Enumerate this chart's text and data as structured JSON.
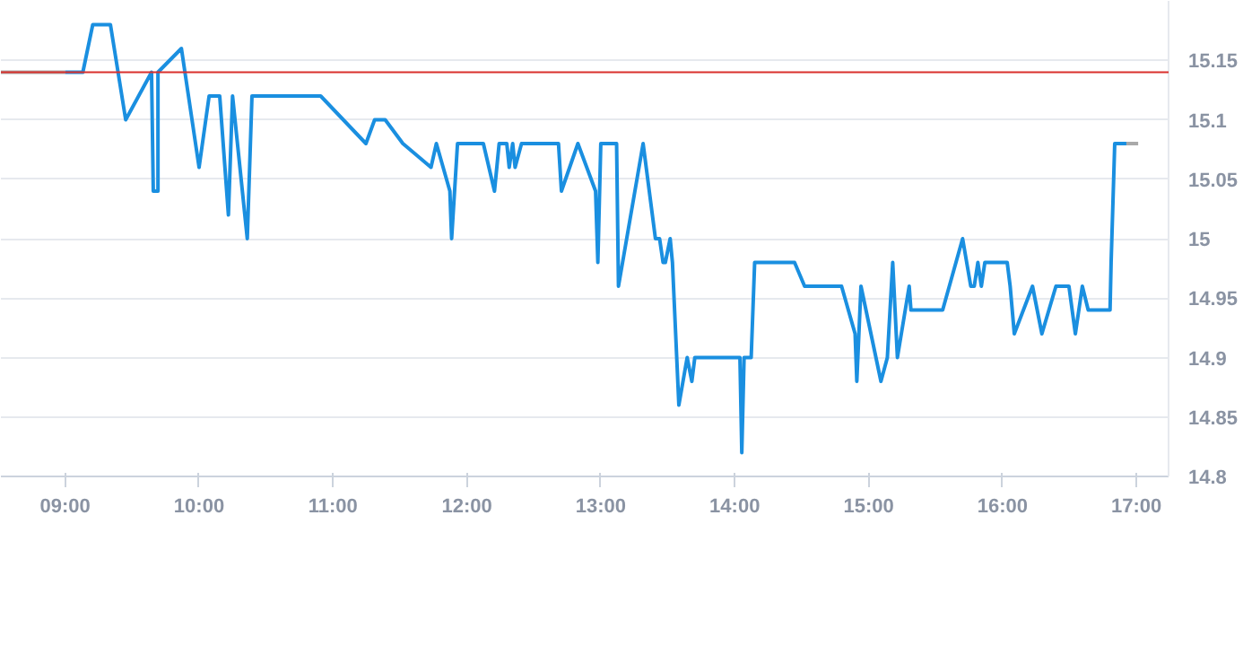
{
  "chart_data": {
    "type": "line",
    "xlim": [
      8.52,
      17.24
    ],
    "xticks": [
      {
        "value": 9,
        "label": "09:00"
      },
      {
        "value": 10,
        "label": "10:00"
      },
      {
        "value": 11,
        "label": "11:00"
      },
      {
        "value": 12,
        "label": "12:00"
      },
      {
        "value": 13,
        "label": "13:00"
      },
      {
        "value": 14,
        "label": "14:00"
      },
      {
        "value": 15,
        "label": "15:00"
      },
      {
        "value": 16,
        "label": "16:00"
      },
      {
        "value": 17,
        "label": "17:00"
      }
    ],
    "ylim": [
      14.8,
      15.2
    ],
    "yticks": [
      14.8,
      14.85,
      14.9,
      14.95,
      15,
      15.05,
      15.1,
      15.15
    ],
    "grid": "y",
    "series": [
      {
        "color": "#a9a9a9",
        "x": [
          8.52,
          9.0
        ],
        "values": [
          15.14,
          15.14
        ]
      },
      {
        "color": "#1a8fe0",
        "x": [
          9.0,
          9.132,
          9.206,
          9.338,
          9.452,
          9.645,
          9.658,
          9.693,
          9.693,
          9.868,
          10.0,
          10.075,
          10.154,
          10.219,
          10.25,
          10.36,
          10.395,
          10.908,
          11.246,
          11.311,
          11.39,
          11.522,
          11.732,
          11.772,
          11.873,
          11.886,
          11.93,
          12.123,
          12.206,
          12.241,
          12.298,
          12.316,
          12.342,
          12.36,
          12.408,
          12.684,
          12.706,
          12.829,
          12.961,
          12.978,
          13.0,
          13.118,
          13.132,
          13.316,
          13.408,
          13.439,
          13.465,
          13.482,
          13.518,
          13.535,
          13.583,
          13.645,
          13.68,
          13.702,
          14.039,
          14.053,
          14.07,
          14.123,
          14.149,
          14.447,
          14.522,
          14.798,
          14.899,
          14.912,
          14.943,
          15.092,
          15.14,
          15.18,
          15.215,
          15.303,
          15.316,
          15.553,
          15.702,
          15.763,
          15.789,
          15.816,
          15.842,
          15.868,
          16.035,
          16.057,
          16.088,
          16.224,
          16.294,
          16.399,
          16.496,
          16.544,
          16.596,
          16.64,
          16.803,
          16.811,
          16.838,
          16.925
        ],
        "values": [
          15.14,
          15.14,
          15.18,
          15.18,
          15.1,
          15.14,
          15.04,
          15.04,
          15.14,
          15.16,
          15.06,
          15.12,
          15.12,
          15.02,
          15.12,
          15.0,
          15.12,
          15.12,
          15.08,
          15.1,
          15.1,
          15.08,
          15.06,
          15.08,
          15.04,
          15.0,
          15.08,
          15.08,
          15.04,
          15.08,
          15.08,
          15.06,
          15.08,
          15.06,
          15.08,
          15.08,
          15.04,
          15.08,
          15.04,
          14.98,
          15.08,
          15.08,
          14.96,
          15.08,
          15.0,
          15.0,
          14.98,
          14.98,
          15.0,
          14.98,
          14.86,
          14.9,
          14.88,
          14.9,
          14.9,
          14.82,
          14.9,
          14.9,
          14.98,
          14.98,
          14.96,
          14.96,
          14.92,
          14.88,
          14.96,
          14.88,
          14.9,
          14.98,
          14.9,
          14.96,
          14.94,
          14.94,
          15.0,
          14.96,
          14.96,
          14.98,
          14.96,
          14.98,
          14.98,
          14.96,
          14.92,
          14.96,
          14.92,
          14.96,
          14.96,
          14.92,
          14.96,
          14.94,
          14.94,
          14.98,
          15.08,
          15.08
        ]
      },
      {
        "color": "#a9a9a9",
        "x": [
          16.925,
          17.013
        ],
        "values": [
          15.08,
          15.08
        ]
      }
    ],
    "ref_lines": [
      {
        "axis": "y",
        "value": 15.14,
        "color": "#d9302c"
      }
    ]
  }
}
